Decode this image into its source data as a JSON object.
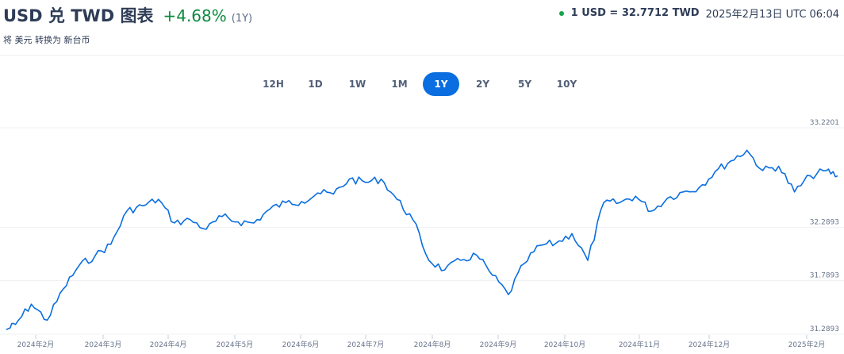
{
  "header": {
    "title": "USD 兑 TWD 图表",
    "change": "+4.68%",
    "period_note": "(1Y)",
    "subtitle": "将 美元 转换为 新台币",
    "rate_text": "1 USD = 32.7712 TWD",
    "rate_time": "2025年2月13日 UTC 06:04"
  },
  "colors": {
    "line": "#0a6ee0",
    "accent": "#0a6ee0",
    "positive": "#0b8a3d",
    "live_dot": "#16a34a"
  },
  "range_tabs": [
    {
      "label": "12H",
      "active": false
    },
    {
      "label": "1D",
      "active": false
    },
    {
      "label": "1W",
      "active": false
    },
    {
      "label": "1M",
      "active": false
    },
    {
      "label": "1Y",
      "active": true
    },
    {
      "label": "2Y",
      "active": false
    },
    {
      "label": "5Y",
      "active": false
    },
    {
      "label": "10Y",
      "active": false
    }
  ],
  "chart_data": {
    "type": "line",
    "series": [
      {
        "x": [
          "2024-02-13",
          "2024-02-17",
          "2024-02-24",
          "2024-03-02",
          "2024-03-09",
          "2024-03-16",
          "2024-03-23",
          "2024-03-30",
          "2024-04-06",
          "2024-04-13",
          "2024-04-20",
          "2024-04-27",
          "2024-05-04",
          "2024-05-11",
          "2024-05-18",
          "2024-05-25",
          "2024-06-01",
          "2024-06-08",
          "2024-06-15",
          "2024-06-22",
          "2024-06-29",
          "2024-07-06",
          "2024-07-13",
          "2024-07-20",
          "2024-07-27",
          "2024-08-03",
          "2024-08-10",
          "2024-08-17",
          "2024-08-24",
          "2024-08-31",
          "2024-09-07",
          "2024-09-14",
          "2024-09-21",
          "2024-09-28",
          "2024-10-05",
          "2024-10-12",
          "2024-10-19",
          "2024-10-26",
          "2024-11-02",
          "2024-11-09",
          "2024-11-16",
          "2024-11-23",
          "2024-11-30",
          "2024-12-07",
          "2024-12-14",
          "2024-12-21",
          "2024-12-28",
          "2025-01-04",
          "2025-01-11",
          "2025-01-18",
          "2025-01-25",
          "2025-02-01",
          "2025-02-08",
          "2025-02-13"
        ],
        "values": [
          31.33,
          31.38,
          31.57,
          31.42,
          31.71,
          31.93,
          32.02,
          32.13,
          32.44,
          32.49,
          32.55,
          32.33,
          32.36,
          32.27,
          32.39,
          32.34,
          32.33,
          32.46,
          32.52,
          32.53,
          32.61,
          32.6,
          32.74,
          32.71,
          32.74,
          32.55,
          32.36,
          31.98,
          31.89,
          31.98,
          32.03,
          31.84,
          31.66,
          31.95,
          32.12,
          32.14,
          32.23,
          31.98,
          32.52,
          32.52,
          32.58,
          32.44,
          32.56,
          32.62,
          32.66,
          32.81,
          32.91,
          33.01,
          32.82,
          32.86,
          32.62,
          32.77,
          32.82,
          32.77
        ]
      }
    ],
    "x_tick_labels": [
      "2024年2月",
      "2024年3月",
      "2024年4月",
      "2024年5月",
      "2024年6月",
      "2024年7月",
      "2024年8月",
      "2024年9月",
      "2024年10月",
      "2024年11月",
      "2024年12月",
      "2025年2月"
    ],
    "y_tick_labels": [
      "33.2201",
      "32.2893",
      "31.7893",
      "31.2893"
    ],
    "y_ticks": [
      33.2201,
      32.2893,
      31.7893,
      31.2893
    ],
    "ylim": [
      31.2893,
      33.2201
    ],
    "grid": true
  }
}
